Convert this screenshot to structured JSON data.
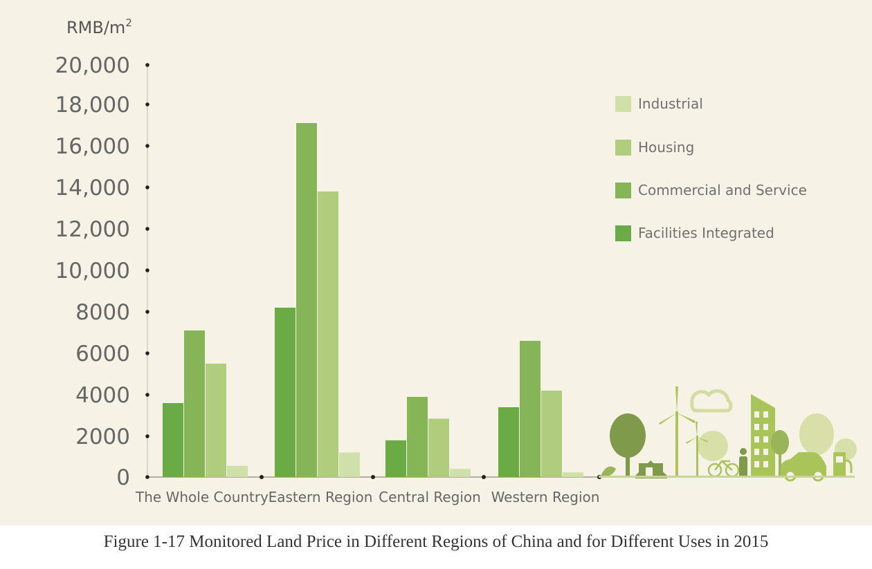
{
  "chart_data": {
    "type": "bar",
    "unit": "RMB/m",
    "unit_superscript": "2",
    "categories": [
      "The Whole Country",
      "Eastern Region",
      "Central Region",
      "Western Region"
    ],
    "series": [
      {
        "name": "Facilities  Integrated",
        "values": [
          3600,
          8200,
          1800,
          3400
        ],
        "color": "#6aab45"
      },
      {
        "name": "Commercial and Service",
        "values": [
          7100,
          17100,
          3900,
          6600
        ],
        "color": "#86b558"
      },
      {
        "name": "Housing",
        "values": [
          5500,
          13800,
          2850,
          4200
        ],
        "color": "#b0cd7e"
      },
      {
        "name": "Industrial",
        "values": [
          550,
          1200,
          400,
          230
        ],
        "color": "#cfe0a8"
      }
    ],
    "legend_order": [
      "Industrial",
      "Housing",
      "Commercial and Service",
      "Facilities  Integrated"
    ],
    "y_ticks": [
      {
        "value": 0,
        "label": "0"
      },
      {
        "value": 2000,
        "label": "2000"
      },
      {
        "value": 4000,
        "label": "4000"
      },
      {
        "value": 6000,
        "label": "6000"
      },
      {
        "value": 8000,
        "label": "8000"
      },
      {
        "value": 10000,
        "label": "10,000"
      },
      {
        "value": 12000,
        "label": "12,000"
      },
      {
        "value": 14000,
        "label": "14,000"
      },
      {
        "value": 16000,
        "label": "16,000"
      },
      {
        "value": 18000,
        "label": "18,000"
      },
      {
        "value": 20000,
        "label": "20,000"
      }
    ],
    "ylim": [
      0,
      20000
    ],
    "grid": false,
    "legend_position": "top-right"
  },
  "caption": "Figure 1-17 Monitored Land Price in Different Regions of China and for Different Uses in 2015"
}
